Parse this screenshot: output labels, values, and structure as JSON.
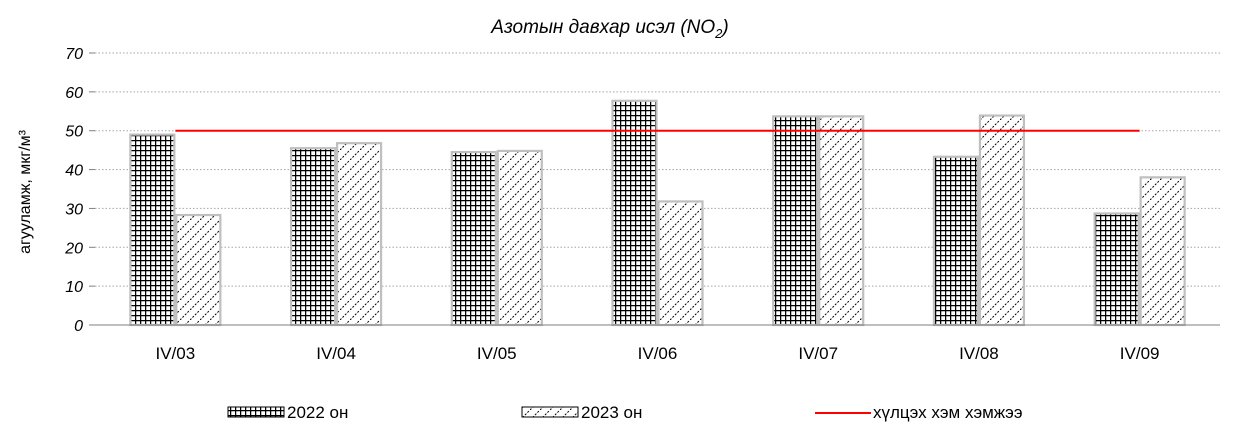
{
  "chart_data": {
    "type": "bar",
    "title_main": "Азотын давхар исэл (NO",
    "title_sub": "2",
    "title_end": ")",
    "ylabel": "агууламж, мкг/м³",
    "categories": [
      "IV/03",
      "IV/04",
      "IV/05",
      "IV/06",
      "IV/07",
      "IV/08",
      "IV/09"
    ],
    "series": [
      {
        "name": "2022 он",
        "values": [
          49,
          45.5,
          44.5,
          57.7,
          53.7,
          43.3,
          28.7
        ],
        "pattern": "grid"
      },
      {
        "name": "2023 он",
        "values": [
          28.3,
          46.8,
          44.8,
          31.8,
          53.7,
          53.9,
          38
        ],
        "pattern": "diagonal"
      }
    ],
    "threshold": {
      "name": "хүлцэх хэм хэмжээ",
      "value": 50,
      "color": "#ff0000"
    },
    "ylim": [
      0,
      70
    ],
    "yticks": [
      "0",
      "10",
      "20",
      "30",
      "40",
      "50",
      "60",
      "70"
    ],
    "grid": true,
    "legend_position": "bottom"
  }
}
